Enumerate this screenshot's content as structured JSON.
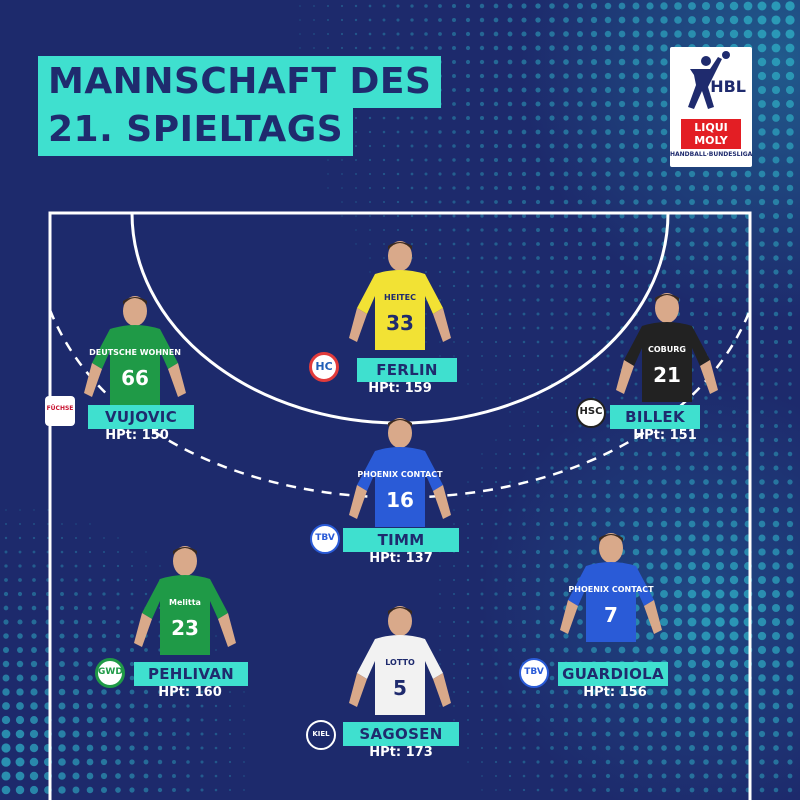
{
  "title": {
    "line1": "MANNSCHAFT DES",
    "line2": "21. SPIELTAGS"
  },
  "logo": {
    "brand": "HBL",
    "sponsor_line1": "LIQUI",
    "sponsor_line2": "MOLY",
    "caption": "HANDBALL·BUNDESLIGA"
  },
  "colors": {
    "background": "#1d2a6c",
    "accent": "#3fe0cf",
    "text_dark": "#1f2b6e"
  },
  "players": [
    {
      "name": "FERLIN",
      "points": "HPt: 159",
      "club_mark": "HC",
      "jersey_number": "33",
      "jersey_text": "HEITEC",
      "jersey_color": "#f2e234"
    },
    {
      "name": "VUJOVIC",
      "points": "HPt: 150",
      "club_mark": "FÜCHSE",
      "jersey_number": "66",
      "jersey_text": "DEUTSCHE WOHNEN",
      "jersey_color": "#1f9a47"
    },
    {
      "name": "BILLEK",
      "points": "HPt: 151",
      "club_mark": "HSC",
      "jersey_number": "21",
      "jersey_text": "COBURG",
      "jersey_color": "#222222"
    },
    {
      "name": "TIMM",
      "points": "HPt: 137",
      "club_mark": "TBV",
      "jersey_number": "16",
      "jersey_text": "PHOENIX CONTACT",
      "jersey_color": "#2a5bd7"
    },
    {
      "name": "PEHLIVAN",
      "points": "HPt: 160",
      "club_mark": "GWD",
      "jersey_number": "23",
      "jersey_text": "Melitta",
      "jersey_color": "#1f9a47"
    },
    {
      "name": "GUARDIOLA",
      "points": "HPt: 156",
      "club_mark": "TBV",
      "jersey_number": "7",
      "jersey_text": "PHOENIX CONTACT",
      "jersey_color": "#2a5bd7"
    },
    {
      "name": "SAGOSEN",
      "points": "HPt: 173",
      "club_mark": "KIEL",
      "jersey_number": "5",
      "jersey_text": "LOTTO",
      "jersey_color": "#f2f2f2"
    }
  ]
}
